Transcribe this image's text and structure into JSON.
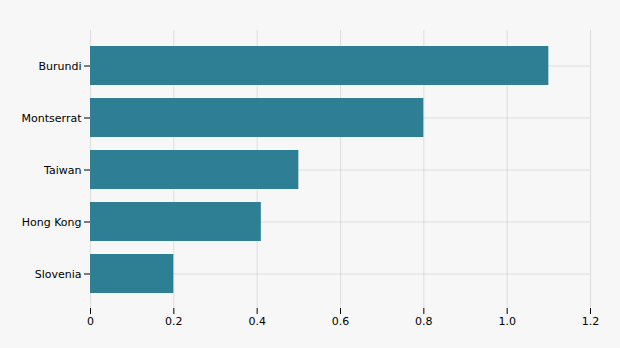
{
  "chart_data": {
    "type": "bar",
    "orientation": "horizontal",
    "categories": [
      "Slovenia",
      "Hong Kong",
      "Taiwan",
      "Montserrat",
      "Burundi"
    ],
    "values": [
      0.2,
      0.41,
      0.5,
      0.8,
      1.1
    ],
    "color": "#2e7f93",
    "xlim": [
      0,
      1.2
    ],
    "xticks": [
      0,
      0.2,
      0.4,
      0.6,
      0.8,
      {
        "value": 1,
        "label": "1.0"
      },
      1.2
    ],
    "grid": true
  }
}
